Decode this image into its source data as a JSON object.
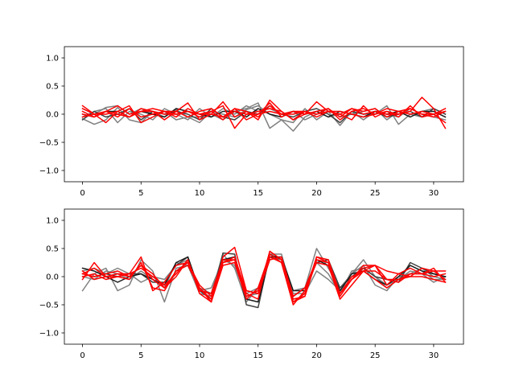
{
  "chart_data": [
    {
      "type": "line",
      "xlim": [
        -1.55,
        32.55
      ],
      "ylim": [
        -1.2,
        1.2
      ],
      "xticks": [
        0,
        5,
        10,
        15,
        20,
        25,
        30
      ],
      "xtick_labels": [
        "0",
        "5",
        "10",
        "15",
        "20",
        "25",
        "30"
      ],
      "yticks": [
        -1.0,
        -0.5,
        0.0,
        0.5,
        1.0
      ],
      "ytick_labels": [
        "−1.0",
        "−0.5",
        "0.0",
        "0.5",
        "1.0"
      ],
      "grid": false,
      "series": [
        {
          "color": "#808080",
          "values": [
            -0.08,
            -0.18,
            -0.1,
            0.12,
            -0.1,
            -0.15,
            0.05,
            -0.05,
            0.08,
            -0.05,
            -0.05,
            0.0,
            -0.1,
            0.05,
            0.1,
            0.2,
            -0.25,
            -0.1,
            -0.15,
            0.1,
            -0.1,
            0.05,
            -0.2,
            0.05,
            -0.1,
            0.05,
            0.0,
            -0.05,
            0.1,
            0.0,
            -0.05,
            -0.1
          ]
        },
        {
          "color": "#808080",
          "values": [
            0.1,
            0.0,
            0.12,
            0.15,
            0.0,
            0.1,
            0.0,
            0.05,
            -0.1,
            -0.05,
            -0.15,
            0.05,
            0.0,
            -0.05,
            0.08,
            0.15,
            0.0,
            -0.1,
            -0.3,
            -0.05,
            0.05,
            -0.05,
            0.0,
            0.1,
            0.0,
            0.0,
            0.15,
            -0.18,
            0.0,
            0.05,
            0.1,
            0.0
          ]
        },
        {
          "color": "#808080",
          "values": [
            -0.05,
            0.05,
            0.1,
            -0.15,
            0.05,
            0.0,
            -0.1,
            0.1,
            0.0,
            -0.1,
            0.1,
            -0.05,
            0.1,
            0.0,
            0.15,
            0.05,
            0.1,
            0.0,
            0.05,
            -0.1,
            0.0,
            0.1,
            -0.05,
            0.0,
            0.05,
            0.1,
            -0.1,
            0.05,
            0.0,
            -0.05,
            0.0,
            0.05
          ]
        },
        {
          "color": "#404040",
          "values": [
            -0.1,
            0.05,
            -0.05,
            0.0,
            0.1,
            -0.1,
            0.05,
            0.0,
            0.05,
            0.0,
            -0.1,
            0.1,
            -0.05,
            -0.1,
            0.05,
            0.0,
            0.15,
            0.0,
            -0.05,
            0.05,
            0.1,
            0.0,
            -0.15,
            0.05,
            0.0,
            0.05,
            -0.05,
            0.0,
            0.05,
            -0.05,
            0.1,
            0.0
          ]
        },
        {
          "color": "#1a1a1a",
          "values": [
            0.0,
            -0.05,
            0.05,
            0.05,
            -0.05,
            0.05,
            0.0,
            -0.05,
            0.1,
            0.05,
            0.0,
            -0.05,
            0.05,
            0.05,
            -0.05,
            0.1,
            0.0,
            -0.05,
            0.05,
            0.0,
            0.05,
            -0.05,
            0.05,
            0.0,
            -0.05,
            0.05,
            0.0,
            0.05,
            -0.05,
            0.05,
            0.05,
            -0.05
          ]
        },
        {
          "color": "#ff0000",
          "values": [
            0.15,
            0.0,
            -0.15,
            0.05,
            0.15,
            -0.15,
            -0.05,
            0.05,
            0.05,
            0.2,
            -0.1,
            0.0,
            0.22,
            -0.05,
            0.05,
            -0.1,
            0.25,
            0.05,
            -0.1,
            0.0,
            0.22,
            0.05,
            0.0,
            0.1,
            0.0,
            0.05,
            0.0,
            0.0,
            0.05,
            0.3,
            0.1,
            -0.25
          ]
        },
        {
          "color": "#ff0000",
          "values": [
            0.05,
            -0.05,
            0.05,
            0.0,
            -0.05,
            0.05,
            0.05,
            0.0,
            0.0,
            0.05,
            0.0,
            0.0,
            -0.05,
            0.1,
            -0.1,
            0.0,
            0.2,
            -0.05,
            0.05,
            0.0,
            0.05,
            0.1,
            -0.1,
            0.05,
            0.1,
            0.0,
            0.05,
            -0.05,
            0.15,
            -0.05,
            0.0,
            -0.15
          ]
        },
        {
          "color": "#ff0000",
          "values": [
            -0.05,
            0.0,
            0.05,
            0.15,
            0.0,
            0.05,
            0.1,
            0.05,
            -0.05,
            0.1,
            0.0,
            0.05,
            0.15,
            -0.25,
            0.0,
            0.05,
            0.1,
            0.05,
            -0.1,
            0.05,
            0.0,
            0.1,
            -0.05,
            0.1,
            0.05,
            0.1,
            -0.05,
            0.05,
            0.1,
            0.0,
            0.0,
            0.1
          ]
        },
        {
          "color": "#ff0000",
          "values": [
            0.1,
            0.0,
            0.0,
            0.05,
            -0.05,
            0.1,
            0.05,
            -0.1,
            0.05,
            -0.05,
            0.05,
            0.1,
            -0.05,
            0.05,
            0.0,
            0.0,
            0.05,
            0.0,
            0.05,
            0.05,
            -0.05,
            0.05,
            0.0,
            -0.1,
            0.15,
            -0.05,
            0.05,
            0.0,
            0.1,
            0.0,
            -0.05,
            0.05
          ]
        },
        {
          "color": "#ff0000",
          "values": [
            0.0,
            -0.05,
            0.05,
            -0.05,
            0.1,
            -0.05,
            0.0,
            0.05,
            0.0,
            0.05,
            -0.05,
            0.05,
            -0.1,
            0.1,
            0.05,
            -0.05,
            0.15,
            0.0,
            0.0,
            0.05,
            0.0,
            0.05,
            0.05,
            0.0,
            -0.05,
            0.0,
            0.1,
            0.05,
            0.0,
            0.05,
            0.0,
            0.05
          ]
        }
      ]
    },
    {
      "type": "line",
      "xlim": [
        -1.55,
        32.55
      ],
      "ylim": [
        -1.2,
        1.2
      ],
      "xticks": [
        0,
        5,
        10,
        15,
        20,
        25,
        30
      ],
      "xtick_labels": [
        "0",
        "5",
        "10",
        "15",
        "20",
        "25",
        "30"
      ],
      "yticks": [
        -1.0,
        -0.5,
        0.0,
        0.5,
        1.0
      ],
      "ytick_labels": [
        "−1.0",
        "−0.5",
        "0.0",
        "0.5",
        "1.0"
      ],
      "grid": false,
      "series": [
        {
          "color": "#808080",
          "values": [
            -0.25,
            0.05,
            0.15,
            -0.25,
            -0.15,
            0.3,
            0.1,
            -0.45,
            0.15,
            0.2,
            -0.3,
            -0.35,
            0.3,
            0.35,
            -0.3,
            -0.2,
            0.4,
            0.4,
            -0.35,
            -0.2,
            0.5,
            0.15,
            -0.2,
            0.05,
            0.3,
            0.0,
            -0.2,
            -0.05,
            0.2,
            0.1,
            -0.05,
            -0.05
          ]
        },
        {
          "color": "#808080",
          "values": [
            0.1,
            0.15,
            0.05,
            0.15,
            0.05,
            -0.1,
            0.0,
            -0.05,
            0.2,
            0.3,
            -0.2,
            -0.3,
            0.4,
            0.15,
            -0.45,
            -0.2,
            0.35,
            0.3,
            -0.3,
            -0.3,
            0.1,
            -0.05,
            -0.25,
            0.05,
            0.2,
            -0.15,
            -0.25,
            0.0,
            0.05,
            0.15,
            0.0,
            -0.05
          ]
        },
        {
          "color": "#808080",
          "values": [
            0.0,
            -0.05,
            0.1,
            0.05,
            -0.05,
            0.1,
            -0.05,
            -0.2,
            0.25,
            0.2,
            -0.25,
            -0.2,
            0.3,
            0.2,
            -0.35,
            -0.3,
            0.3,
            0.35,
            -0.25,
            -0.2,
            0.25,
            0.05,
            -0.3,
            0.1,
            0.15,
            0.0,
            -0.15,
            -0.05,
            0.1,
            0.05,
            -0.1,
            0.0
          ]
        },
        {
          "color": "#404040",
          "values": [
            0.05,
            0.0,
            0.05,
            0.0,
            0.05,
            0.05,
            -0.1,
            -0.1,
            0.2,
            0.35,
            -0.25,
            -0.4,
            0.42,
            0.4,
            -0.5,
            -0.55,
            0.4,
            0.3,
            -0.35,
            -0.2,
            0.25,
            0.3,
            -0.2,
            0.0,
            0.15,
            0.0,
            -0.05,
            -0.1,
            0.25,
            0.15,
            0.05,
            0.0
          ]
        },
        {
          "color": "#1a1a1a",
          "values": [
            0.15,
            0.1,
            0.0,
            -0.1,
            0.0,
            0.05,
            -0.05,
            -0.15,
            0.25,
            0.35,
            -0.25,
            -0.3,
            0.3,
            0.35,
            -0.4,
            -0.45,
            0.35,
            0.35,
            -0.25,
            -0.25,
            0.3,
            0.2,
            -0.25,
            0.05,
            0.1,
            -0.05,
            -0.15,
            0.0,
            0.2,
            0.1,
            0.05,
            0.0
          ]
        },
        {
          "color": "#ff0000",
          "values": [
            -0.05,
            0.25,
            0.0,
            0.05,
            0.05,
            0.35,
            -0.25,
            -0.1,
            0.2,
            0.25,
            -0.2,
            -0.45,
            0.35,
            0.52,
            -0.25,
            -0.3,
            0.45,
            0.3,
            -0.45,
            -0.3,
            0.35,
            0.25,
            -0.35,
            -0.05,
            0.2,
            0.2,
            0.1,
            0.05,
            0.0,
            0.15,
            0.1,
            0.1
          ]
        },
        {
          "color": "#ff0000",
          "values": [
            0.05,
            0.0,
            0.05,
            0.1,
            0.0,
            0.2,
            0.05,
            -0.2,
            0.0,
            0.3,
            -0.3,
            -0.45,
            0.2,
            0.25,
            -0.4,
            -0.2,
            0.4,
            0.25,
            -0.45,
            -0.35,
            0.35,
            0.3,
            -0.3,
            0.0,
            0.1,
            -0.05,
            -0.2,
            -0.05,
            0.0,
            0.0,
            -0.05,
            -0.1
          ]
        },
        {
          "color": "#ff0000",
          "values": [
            0.05,
            0.15,
            0.0,
            0.0,
            -0.05,
            0.25,
            -0.2,
            -0.25,
            0.1,
            0.25,
            -0.15,
            -0.35,
            0.25,
            0.3,
            -0.35,
            -0.25,
            0.35,
            0.25,
            -0.5,
            -0.25,
            0.25,
            0.2,
            -0.4,
            -0.15,
            0.1,
            0.2,
            -0.15,
            0.05,
            0.15,
            0.05,
            0.15,
            -0.1
          ]
        },
        {
          "color": "#ff0000",
          "values": [
            0.0,
            0.05,
            -0.05,
            0.0,
            0.05,
            0.15,
            0.0,
            -0.15,
            0.05,
            0.3,
            -0.25,
            -0.3,
            0.3,
            0.3,
            -0.25,
            -0.3,
            0.3,
            0.35,
            -0.35,
            -0.2,
            0.3,
            0.25,
            -0.3,
            -0.05,
            0.15,
            0.2,
            -0.05,
            -0.05,
            0.05,
            0.05,
            0.0,
            0.05
          ]
        },
        {
          "color": "#ff0000",
          "values": [
            0.1,
            -0.05,
            0.0,
            0.05,
            0.0,
            0.2,
            -0.05,
            -0.2,
            0.1,
            0.2,
            -0.2,
            -0.4,
            0.25,
            0.35,
            -0.3,
            -0.4,
            0.45,
            0.3,
            -0.4,
            -0.35,
            0.3,
            0.25,
            -0.3,
            -0.05,
            0.1,
            0.1,
            -0.05,
            -0.1,
            0.05,
            0.05,
            0.1,
            -0.05
          ]
        }
      ]
    }
  ]
}
